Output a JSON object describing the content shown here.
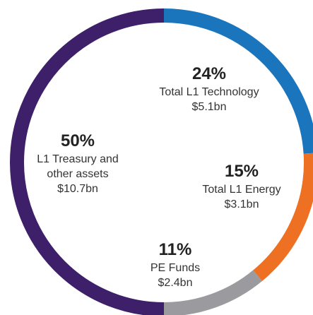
{
  "chart_data": {
    "type": "pie",
    "donut": true,
    "categories": [
      "Total L1 Technology",
      "Total L1 Energy",
      "PE Funds",
      "L1 Treasury and other assets"
    ],
    "values": [
      24,
      15,
      11,
      50
    ],
    "value_labels": [
      "24%",
      "15%",
      "11%",
      "50%"
    ],
    "amounts": [
      "$5.1bn",
      "$3.1bn",
      "$2.4bn",
      "$10.7bn"
    ],
    "colors": [
      "#1b75bc",
      "#ee7023",
      "#9b9b9f",
      "#3d1f6a"
    ]
  }
}
